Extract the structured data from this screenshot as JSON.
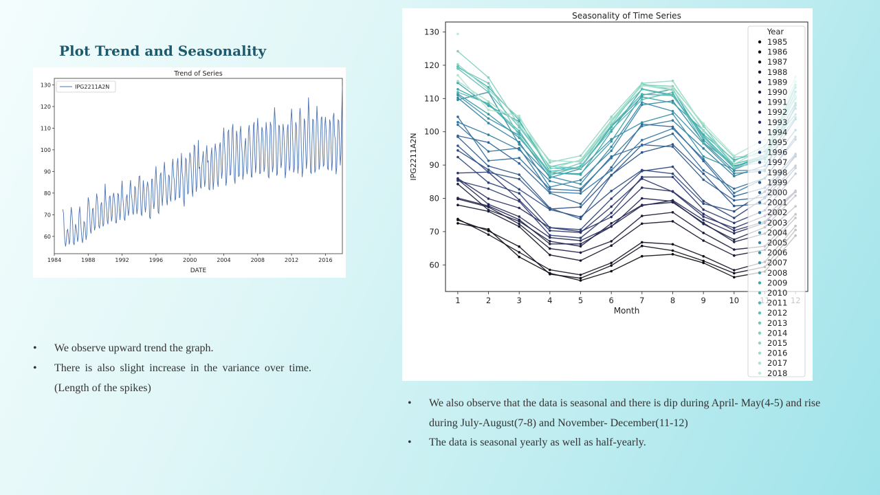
{
  "slide": {
    "title": "Plot Trend and Seasonality",
    "left_bullets": [
      "We observe upward trend the graph.",
      "There is also slight increase in the variance over time.(Length  of the spikes)"
    ],
    "right_bullets": [
      "We also observe that the data is seasonal and there is dip during April- May(4-5) and rise during July-August(7-8)  and November-  December(11-12)",
      "The data is seasonal yearly as well as half-yearly."
    ]
  },
  "chart_data": [
    {
      "type": "line",
      "title": "Trend of Series",
      "xlabel": "DATE",
      "ylabel": "",
      "xlim": [
        1984,
        2018
      ],
      "ylim": [
        52,
        133
      ],
      "xticks": [
        "1984",
        "1988",
        "1992",
        "1996",
        "2000",
        "2004",
        "2008",
        "2012",
        "2016"
      ],
      "yticks": [
        "60",
        "70",
        "80",
        "90",
        "100",
        "110",
        "120",
        "130"
      ],
      "legend": "top-left",
      "series_color": "#4c72b0",
      "series": [
        {
          "name": "IPG2211A2N",
          "x_start": 1985.0,
          "x_step": 0.0833333,
          "values": [
            72.5,
            70.7,
            62.4,
            57.5,
            55.3,
            58.1,
            62.6,
            63.2,
            60.6,
            56.3,
            58.0,
            68.8,
            73.5,
            70.2,
            65.5,
            57.2,
            56.0,
            59.8,
            65.7,
            64.3,
            61.2,
            57.5,
            59.4,
            70.5,
            73.8,
            69.1,
            63.8,
            58.5,
            57.0,
            60.6,
            66.8,
            66.2,
            62.6,
            58.4,
            60.9,
            71.7,
            78.0,
            76.1,
            71.5,
            63.0,
            61.3,
            65.8,
            72.4,
            73.1,
            67.3,
            62.8,
            64.5,
            74.1,
            79.8,
            77.4,
            72.3,
            64.9,
            63.7,
            67.1,
            74.7,
            75.8,
            69.6,
            64.6,
            65.6,
            75.2,
            84.3,
            76.5,
            73.1,
            67.1,
            65.6,
            72.5,
            78.0,
            78.8,
            72.6,
            66.9,
            69.4,
            77.6,
            80.1,
            77.7,
            73.6,
            66.3,
            66.3,
            71.5,
            80.0,
            79.1,
            72.3,
            67.6,
            71.3,
            80.8,
            85.7,
            78.2,
            74.5,
            68.2,
            67.3,
            71.6,
            77.8,
            79.4,
            73.5,
            69.5,
            72.6,
            82.3,
            86.0,
            79.9,
            77.1,
            71.2,
            70.0,
            74.4,
            83.2,
            82.1,
            75.3,
            70.3,
            73.0,
            81.9,
            87.6,
            87.9,
            79.5,
            70.3,
            69.7,
            77.5,
            85.9,
            82.0,
            74.5,
            71.1,
            74.7,
            82.1,
            85.3,
            82.9,
            79.1,
            68.9,
            68.1,
            75.6,
            86.4,
            86.4,
            76.6,
            72.6,
            76.4,
            87.4,
            92.4,
            84.7,
            81.5,
            71.2,
            70.6,
            79.9,
            88.2,
            89.5,
            79.2,
            74.1,
            80.1,
            89.8,
            94.4,
            88.6,
            82.7,
            76.6,
            74.4,
            82.2,
            88.5,
            87.4,
            78.4,
            76.1,
            82.0,
            92.6,
            95.8,
            87.8,
            85.8,
            76.8,
            77.4,
            87.0,
            93.8,
            96.2,
            87.4,
            77.7,
            78.4,
            89.1,
            98.5,
            89.7,
            87.1,
            77.1,
            73.8,
            86.9,
            96.1,
            95.5,
            85.6,
            79.4,
            80.4,
            93.1,
            98.8,
            96.8,
            90.5,
            81.6,
            78.3,
            89.3,
            102.3,
            101.5,
            91.2,
            80.6,
            83.2,
            93.3,
            104.5,
            91.3,
            92.1,
            82.8,
            82.3,
            92.6,
            95.9,
            99.4,
            88.4,
            82.9,
            86.1,
            97.7,
            102.1,
            94.1,
            95.1,
            81.9,
            81.5,
            88.4,
            97.5,
            101.0,
            91.8,
            81.6,
            86.0,
            98.5,
            102.9,
            99.1,
            94.6,
            85.2,
            82.9,
            92.1,
            101.7,
            103.4,
            95.0,
            86.7,
            89.8,
            103.8,
            110.2,
            102.6,
            96.9,
            83.4,
            85.5,
            94.3,
            108.1,
            109.3,
            96.9,
            88.3,
            88.6,
            100.5,
            109.6,
            111.9,
            96.2,
            86.6,
            84.3,
            95.5,
            108.8,
            106.2,
            96.5,
            87.5,
            88.2,
            107.9,
            111.0,
            104.0,
            98.9,
            86.2,
            88.9,
            97.8,
            102.8,
            105.4,
            92.6,
            88.7,
            92.3,
            108.6,
            111.4,
            105.3,
            98.2,
            87.6,
            87.4,
            97.1,
            111.0,
            112.8,
            97.6,
            89.4,
            93.1,
            107.0,
            114.7,
            107.8,
            103.1,
            89.0,
            89.2,
            101.5,
            110.5,
            108.7,
            100.4,
            89.8,
            91.8,
            104.3,
            112.8,
            108.3,
            99.6,
            87.7,
            87.1,
            100.1,
            112.9,
            111.1,
            98.8,
            89.6,
            92.4,
            112.0,
            119.6,
            113.4,
            103.5,
            88.1,
            89.1,
            101.8,
            111.3,
            110.9,
            99.2,
            91.6,
            94.1,
            105.2,
            111.9,
            108.5,
            100.3,
            86.9,
            89.7,
            100.6,
            109.7,
            111.8,
            96.7,
            90.3,
            92.8,
            113.3,
            119.0,
            111.9,
            101.4,
            89.5,
            91.4,
            103.4,
            112.8,
            110.8,
            98.4,
            89.0,
            93.0,
            114.1,
            119.3,
            114.6,
            98.7,
            87.4,
            90.6,
            102.0,
            114.4,
            112.6,
            100.4,
            91.2,
            95.7,
            109.9,
            124.2,
            116.3,
            101.9,
            89.6,
            89.1,
            103.6,
            114.1,
            113.7,
            102.0,
            89.4,
            90.9,
            110.6,
            120.3,
            112.6,
            104.2,
            90.8,
            92.8,
            104.5,
            114.6,
            115.3,
            101.6,
            92.4,
            93.0,
            110.8,
            115.2,
            109.1,
            102.5,
            91.4,
            90.9,
            102.8,
            114.0,
            112.4,
            100.2,
            90.3,
            95.0,
            115.1,
            117.0,
            106.6,
            104.8,
            88.7,
            91.6,
            103.5,
            113.8,
            113.2,
            102.5,
            92.8,
            97.8,
            116.5,
            129.4
          ]
        }
      ]
    },
    {
      "type": "line",
      "title": "Seasonality of Time Series",
      "xlabel": "Month",
      "ylabel": "IPG2211A2N",
      "xlim": [
        0.6,
        12.4
      ],
      "ylim": [
        52,
        133
      ],
      "xticks": [
        "1",
        "2",
        "3",
        "4",
        "5",
        "6",
        "7",
        "8",
        "9",
        "10",
        "11",
        "12"
      ],
      "yticks": [
        "60",
        "70",
        "80",
        "90",
        "100",
        "110",
        "120",
        "130"
      ],
      "legend": "right",
      "legend_title": "Year",
      "palette": "dark-to-light teal (mako)",
      "years": [
        "1985",
        "1986",
        "1987",
        "1988",
        "1989",
        "1990",
        "1991",
        "1992",
        "1993",
        "1994",
        "1995",
        "1996",
        "1997",
        "1998",
        "1999",
        "2000",
        "2001",
        "2002",
        "2003",
        "2004",
        "2005",
        "2006",
        "2007",
        "2008",
        "2009",
        "2010",
        "2011",
        "2012",
        "2013",
        "2014",
        "2015",
        "2016",
        "2017",
        "2018"
      ],
      "x": [
        1,
        2,
        3,
        4,
        5,
        6,
        7,
        8,
        9,
        10,
        11,
        12
      ],
      "series_source": "series of chart 1, split into consecutive 12-month years"
    }
  ]
}
